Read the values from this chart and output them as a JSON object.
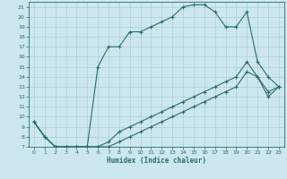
{
  "xlabel": "Humidex (Indice chaleur)",
  "bg_color": "#cce8ec",
  "grid_color": "#aacdd4",
  "line_color": "#2a6b68",
  "xlim": [
    -0.5,
    23.5
  ],
  "ylim": [
    7,
    21.5
  ],
  "xticks": [
    0,
    1,
    2,
    3,
    4,
    5,
    6,
    7,
    8,
    9,
    10,
    11,
    12,
    13,
    14,
    15,
    16,
    17,
    18,
    19,
    20,
    21,
    22,
    23
  ],
  "yticks": [
    7,
    8,
    9,
    10,
    11,
    12,
    13,
    14,
    15,
    16,
    17,
    18,
    19,
    20,
    21
  ],
  "curve1_x": [
    0,
    1,
    2,
    3,
    4,
    5,
    6,
    7,
    8,
    9,
    10,
    11,
    12,
    13,
    14,
    15,
    16,
    17,
    18,
    19,
    20,
    21,
    22,
    23
  ],
  "curve1_y": [
    9.5,
    8.0,
    7.0,
    7.0,
    7.0,
    7.0,
    15.0,
    17.0,
    17.0,
    18.5,
    18.5,
    19.0,
    19.5,
    20.0,
    21.0,
    21.2,
    21.2,
    20.5,
    19.0,
    19.0,
    20.5,
    15.5,
    14.0,
    13.0
  ],
  "curve2_x": [
    0,
    1,
    2,
    3,
    4,
    5,
    6,
    7,
    8,
    9,
    10,
    11,
    12,
    13,
    14,
    15,
    16,
    17,
    18,
    19,
    20,
    21,
    22,
    23
  ],
  "curve2_y": [
    9.5,
    8.0,
    7.0,
    7.0,
    7.0,
    7.0,
    7.0,
    7.5,
    8.5,
    9.0,
    9.5,
    10.0,
    10.5,
    11.0,
    11.5,
    12.0,
    12.5,
    13.0,
    13.5,
    14.0,
    15.5,
    14.0,
    12.5,
    13.0
  ],
  "curve3_x": [
    0,
    1,
    2,
    3,
    4,
    5,
    6,
    7,
    8,
    9,
    10,
    11,
    12,
    13,
    14,
    15,
    16,
    17,
    18,
    19,
    20,
    21,
    22,
    23
  ],
  "curve3_y": [
    9.5,
    8.0,
    7.0,
    7.0,
    7.0,
    7.0,
    7.0,
    7.0,
    7.5,
    8.0,
    8.5,
    9.0,
    9.5,
    10.0,
    10.5,
    11.0,
    11.5,
    12.0,
    12.5,
    13.0,
    14.5,
    14.0,
    12.0,
    13.0
  ]
}
